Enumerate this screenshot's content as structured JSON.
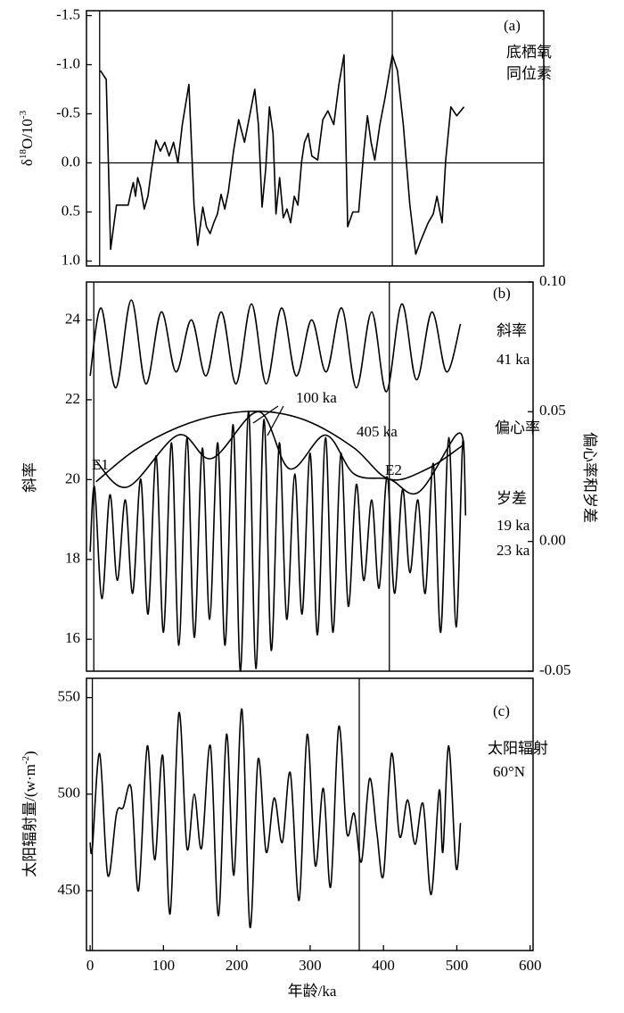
{
  "chart_data": [
    {
      "type": "line",
      "ylabel_parts": [
        "δ",
        "18",
        "O/10",
        "-3"
      ],
      "annotations": [
        "(a)",
        "底栖氧",
        "同位素"
      ],
      "xlim": [
        -18,
        607
      ],
      "ylim": [
        -1.55,
        1.05
      ],
      "y_inverted": true,
      "yticks": [
        -1.5,
        {
          "value": -1,
          "label": "-1.0"
        },
        -0.5,
        {
          "value": 0,
          "label": "0.0"
        },
        0.5,
        {
          "value": 1,
          "label": "1.0"
        }
      ],
      "hline": 0,
      "vlines": [
        0,
        400
      ],
      "smooth": false,
      "series": [
        {
          "color": "#000000",
          "x": [
            1,
            9,
            15,
            23,
            39,
            43,
            46,
            49,
            52,
            56,
            61,
            66,
            71,
            77,
            83,
            89,
            95,
            101,
            107,
            113,
            122,
            129,
            134,
            141,
            146,
            151,
            156,
            161,
            166,
            171,
            176,
            183,
            190,
            198,
            205,
            212,
            217,
            222,
            227,
            232,
            237,
            241,
            246,
            251,
            256,
            261,
            266,
            271,
            276,
            280,
            285,
            290,
            298,
            305,
            312,
            320,
            327,
            334,
            339,
            346,
            354,
            361,
            366,
            371,
            376,
            383,
            390,
            400,
            407,
            415,
            424,
            432,
            439,
            449,
            456,
            461,
            468,
            473,
            480,
            488,
            498
          ],
          "values": [
            -0.94,
            -0.85,
            0.88,
            0.43,
            0.43,
            0.29,
            0.2,
            0.34,
            0.15,
            0.25,
            0.47,
            0.34,
            0.06,
            -0.23,
            -0.12,
            -0.21,
            -0.07,
            -0.21,
            0,
            -0.39,
            -0.8,
            0.43,
            0.84,
            0.45,
            0.65,
            0.72,
            0.61,
            0.52,
            0.32,
            0.47,
            0.29,
            -0.12,
            -0.44,
            -0.21,
            -0.48,
            -0.75,
            -0.39,
            0.45,
            0.06,
            -0.57,
            -0.3,
            0.52,
            0.15,
            0.56,
            0.47,
            0.61,
            0.34,
            0.43,
            -0.01,
            -0.21,
            -0.3,
            -0.07,
            -0.03,
            -0.44,
            -0.53,
            -0.39,
            -0.8,
            -1.1,
            0.65,
            0.5,
            0.5,
            -0.12,
            -0.48,
            -0.21,
            -0.03,
            -0.39,
            -0.66,
            -1.1,
            -0.94,
            -0.39,
            0.43,
            0.93,
            0.79,
            0.61,
            0.52,
            0.34,
            0.61,
            -0.03,
            -0.57,
            -0.48,
            -0.57
          ]
        }
      ]
    },
    {
      "type": "line",
      "ylabel_parts": [
        "斜率"
      ],
      "y2label": "偏心率和岁差",
      "annotations": [
        "(b)",
        "斜率",
        "41 ka",
        "100 ka",
        "405 ka",
        "偏心率",
        "E1",
        "E2",
        "岁差",
        "19 ka",
        "23 ka"
      ],
      "xlim": [
        -5,
        604
      ],
      "ylim": [
        15.2,
        24.95
      ],
      "yticks": [
        16,
        18,
        20,
        22,
        24
      ],
      "y2lim": [
        -0.05,
        0.1
      ],
      "y2ticks": [
        {
          "value": 0.1,
          "label": "0.10"
        },
        0.05,
        {
          "value": 0,
          "label": "0.00"
        },
        -0.05
      ],
      "vlines": [
        5,
        408
      ],
      "smooth": true,
      "series": [
        {
          "color": "#000000",
          "axis": "y",
          "x": [
            0,
            15,
            35,
            56,
            76,
            97,
            117,
            138,
            158,
            179,
            199,
            220,
            240,
            261,
            281,
            302,
            322,
            343,
            363,
            384,
            404,
            425,
            445,
            466,
            486,
            505
          ],
          "values": [
            22.6,
            24.3,
            22.3,
            24.5,
            22.4,
            24.2,
            22.7,
            24.0,
            22.6,
            24.2,
            22.4,
            24.4,
            22.4,
            24.3,
            22.6,
            24.0,
            22.7,
            24.3,
            22.3,
            24.2,
            22.2,
            24.4,
            22.5,
            24.2,
            22.7,
            23.9
          ]
        },
        {
          "color": "#000000",
          "axis": "y2",
          "x": [
            0,
            6,
            16,
            27,
            37,
            48,
            58,
            69,
            79,
            90,
            100,
            111,
            121,
            132,
            142,
            153,
            163,
            174,
            184,
            195,
            205,
            216,
            226,
            237,
            247,
            258,
            268,
            279,
            289,
            300,
            310,
            321,
            331,
            342,
            352,
            363,
            373,
            384,
            394,
            405,
            415,
            426,
            436,
            447,
            457,
            468,
            478,
            489,
            499,
            508,
            512
          ],
          "values": [
            -0.004,
            0.021,
            -0.022,
            0.018,
            -0.015,
            0.016,
            -0.02,
            0.024,
            -0.028,
            0.033,
            -0.035,
            0.038,
            -0.04,
            0.04,
            -0.037,
            0.036,
            -0.03,
            0.038,
            -0.04,
            0.045,
            -0.05,
            0.05,
            -0.049,
            0.047,
            -0.042,
            0.038,
            -0.03,
            0.026,
            -0.028,
            0.034,
            -0.036,
            0.04,
            -0.035,
            0.034,
            -0.025,
            0.022,
            -0.015,
            0.016,
            -0.018,
            0.025,
            -0.02,
            0.02,
            -0.012,
            0.016,
            -0.02,
            0.03,
            -0.035,
            0.04,
            -0.033,
            0.038,
            0.01
          ]
        },
        {
          "color": "#000000",
          "axis": "y2",
          "x": [
            8,
            51,
            120,
            166,
            230,
            272,
            321,
            360,
            408,
            448,
            499,
            510
          ],
          "values": [
            0.031,
            0.021,
            0.041,
            0.032,
            0.05,
            0.028,
            0.041,
            0.026,
            0.024,
            0.019,
            0.041,
            0.037
          ]
        },
        {
          "color": "#000000",
          "axis": "y2",
          "x": [
            8,
            60,
            120,
            180,
            242,
            300,
            360,
            408,
            460,
            508
          ],
          "values": [
            0.023,
            0.035,
            0.044,
            0.049,
            0.05,
            0.046,
            0.036,
            0.024,
            0.028,
            0.037
          ]
        }
      ]
    },
    {
      "type": "line",
      "ylabel_parts": [
        "太阳辐射量/(w·m",
        "-2",
        ")"
      ],
      "annotations": [
        "(c)",
        "太阳辐射",
        "60°N"
      ],
      "xlabel": "年龄/ka",
      "xlim": [
        -5,
        604
      ],
      "xticks": [
        0,
        100,
        200,
        300,
        400,
        500,
        600
      ],
      "ylim": [
        419,
        560
      ],
      "yticks": [
        450,
        500,
        550
      ],
      "vlines": [
        3,
        367
      ],
      "smooth": true,
      "series": [
        {
          "color": "#000000",
          "x": [
            0,
            3,
            13,
            24,
            36,
            45,
            56,
            66,
            78,
            88,
            99,
            109,
            121,
            132,
            142,
            152,
            164,
            175,
            186,
            196,
            207,
            218,
            229,
            240,
            251,
            262,
            273,
            285,
            296,
            307,
            318,
            328,
            339,
            350,
            360,
            370,
            381,
            391,
            400,
            411,
            422,
            433,
            443,
            454,
            465,
            476,
            481,
            489,
            499,
            505
          ],
          "values": [
            475,
            472,
            521,
            458,
            490,
            493,
            503,
            450,
            525,
            466,
            520,
            438,
            542,
            472,
            500,
            472,
            525,
            437,
            531,
            458,
            544,
            431,
            518,
            470,
            498,
            475,
            511,
            445,
            531,
            463,
            503,
            452,
            535,
            480,
            490,
            465,
            508,
            480,
            458,
            521,
            478,
            497,
            474,
            495,
            448,
            502,
            470,
            525,
            462,
            485
          ]
        }
      ]
    }
  ]
}
